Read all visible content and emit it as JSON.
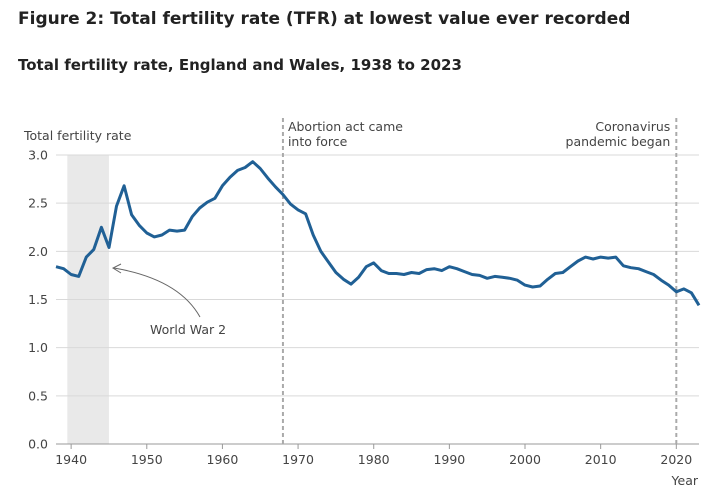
{
  "title": "Figure 2: Total fertility rate (TFR) at lowest value ever recorded",
  "subtitle": "Total fertility rate, England and Wales, 1938 to 2023",
  "chart_data": {
    "type": "line",
    "title": "Total fertility rate, England and Wales, 1938 to 2023",
    "ylabel": "Total fertility rate",
    "xlabel": "Year",
    "ylim": [
      0,
      3
    ],
    "xlim": [
      1938,
      2023
    ],
    "yticks": [
      "0.0",
      "0.5",
      "1.0",
      "1.5",
      "2.0",
      "2.5",
      "3.0"
    ],
    "xticks": [
      "1940",
      "1950",
      "1960",
      "1970",
      "1980",
      "1990",
      "2000",
      "2010",
      "2020"
    ],
    "grid": true,
    "color": "#206095",
    "x": [
      1938,
      1939,
      1940,
      1941,
      1942,
      1943,
      1944,
      1945,
      1946,
      1947,
      1948,
      1949,
      1950,
      1951,
      1952,
      1953,
      1954,
      1955,
      1956,
      1957,
      1958,
      1959,
      1960,
      1961,
      1962,
      1963,
      1964,
      1965,
      1966,
      1967,
      1968,
      1969,
      1970,
      1971,
      1972,
      1973,
      1974,
      1975,
      1976,
      1977,
      1978,
      1979,
      1980,
      1981,
      1982,
      1983,
      1984,
      1985,
      1986,
      1987,
      1988,
      1989,
      1990,
      1991,
      1992,
      1993,
      1994,
      1995,
      1996,
      1997,
      1998,
      1999,
      2000,
      2001,
      2002,
      2003,
      2004,
      2005,
      2006,
      2007,
      2008,
      2009,
      2010,
      2011,
      2012,
      2013,
      2014,
      2015,
      2016,
      2017,
      2018,
      2019,
      2020,
      2021,
      2022,
      2023
    ],
    "values": [
      1.84,
      1.82,
      1.76,
      1.74,
      1.94,
      2.02,
      2.25,
      2.04,
      2.47,
      2.68,
      2.38,
      2.27,
      2.19,
      2.15,
      2.17,
      2.22,
      2.21,
      2.22,
      2.36,
      2.45,
      2.51,
      2.55,
      2.68,
      2.77,
      2.84,
      2.87,
      2.93,
      2.86,
      2.76,
      2.67,
      2.59,
      2.49,
      2.43,
      2.39,
      2.17,
      2.0,
      1.89,
      1.78,
      1.71,
      1.66,
      1.73,
      1.84,
      1.88,
      1.8,
      1.77,
      1.77,
      1.76,
      1.78,
      1.77,
      1.81,
      1.82,
      1.8,
      1.84,
      1.82,
      1.79,
      1.76,
      1.75,
      1.72,
      1.74,
      1.73,
      1.72,
      1.7,
      1.65,
      1.63,
      1.64,
      1.71,
      1.77,
      1.78,
      1.84,
      1.9,
      1.94,
      1.92,
      1.94,
      1.93,
      1.94,
      1.85,
      1.83,
      1.82,
      1.79,
      1.76,
      1.7,
      1.65,
      1.58,
      1.61,
      1.57,
      1.44
    ],
    "shaded_range": [
      1939.5,
      1945
    ],
    "annotations": [
      {
        "text": "World War 2",
        "year": 1945
      },
      {
        "lines": [
          "Abortion act came",
          "into force"
        ],
        "year": 1968
      },
      {
        "lines": [
          "Coronavirus",
          "pandemic began"
        ],
        "year": 2020
      }
    ]
  }
}
